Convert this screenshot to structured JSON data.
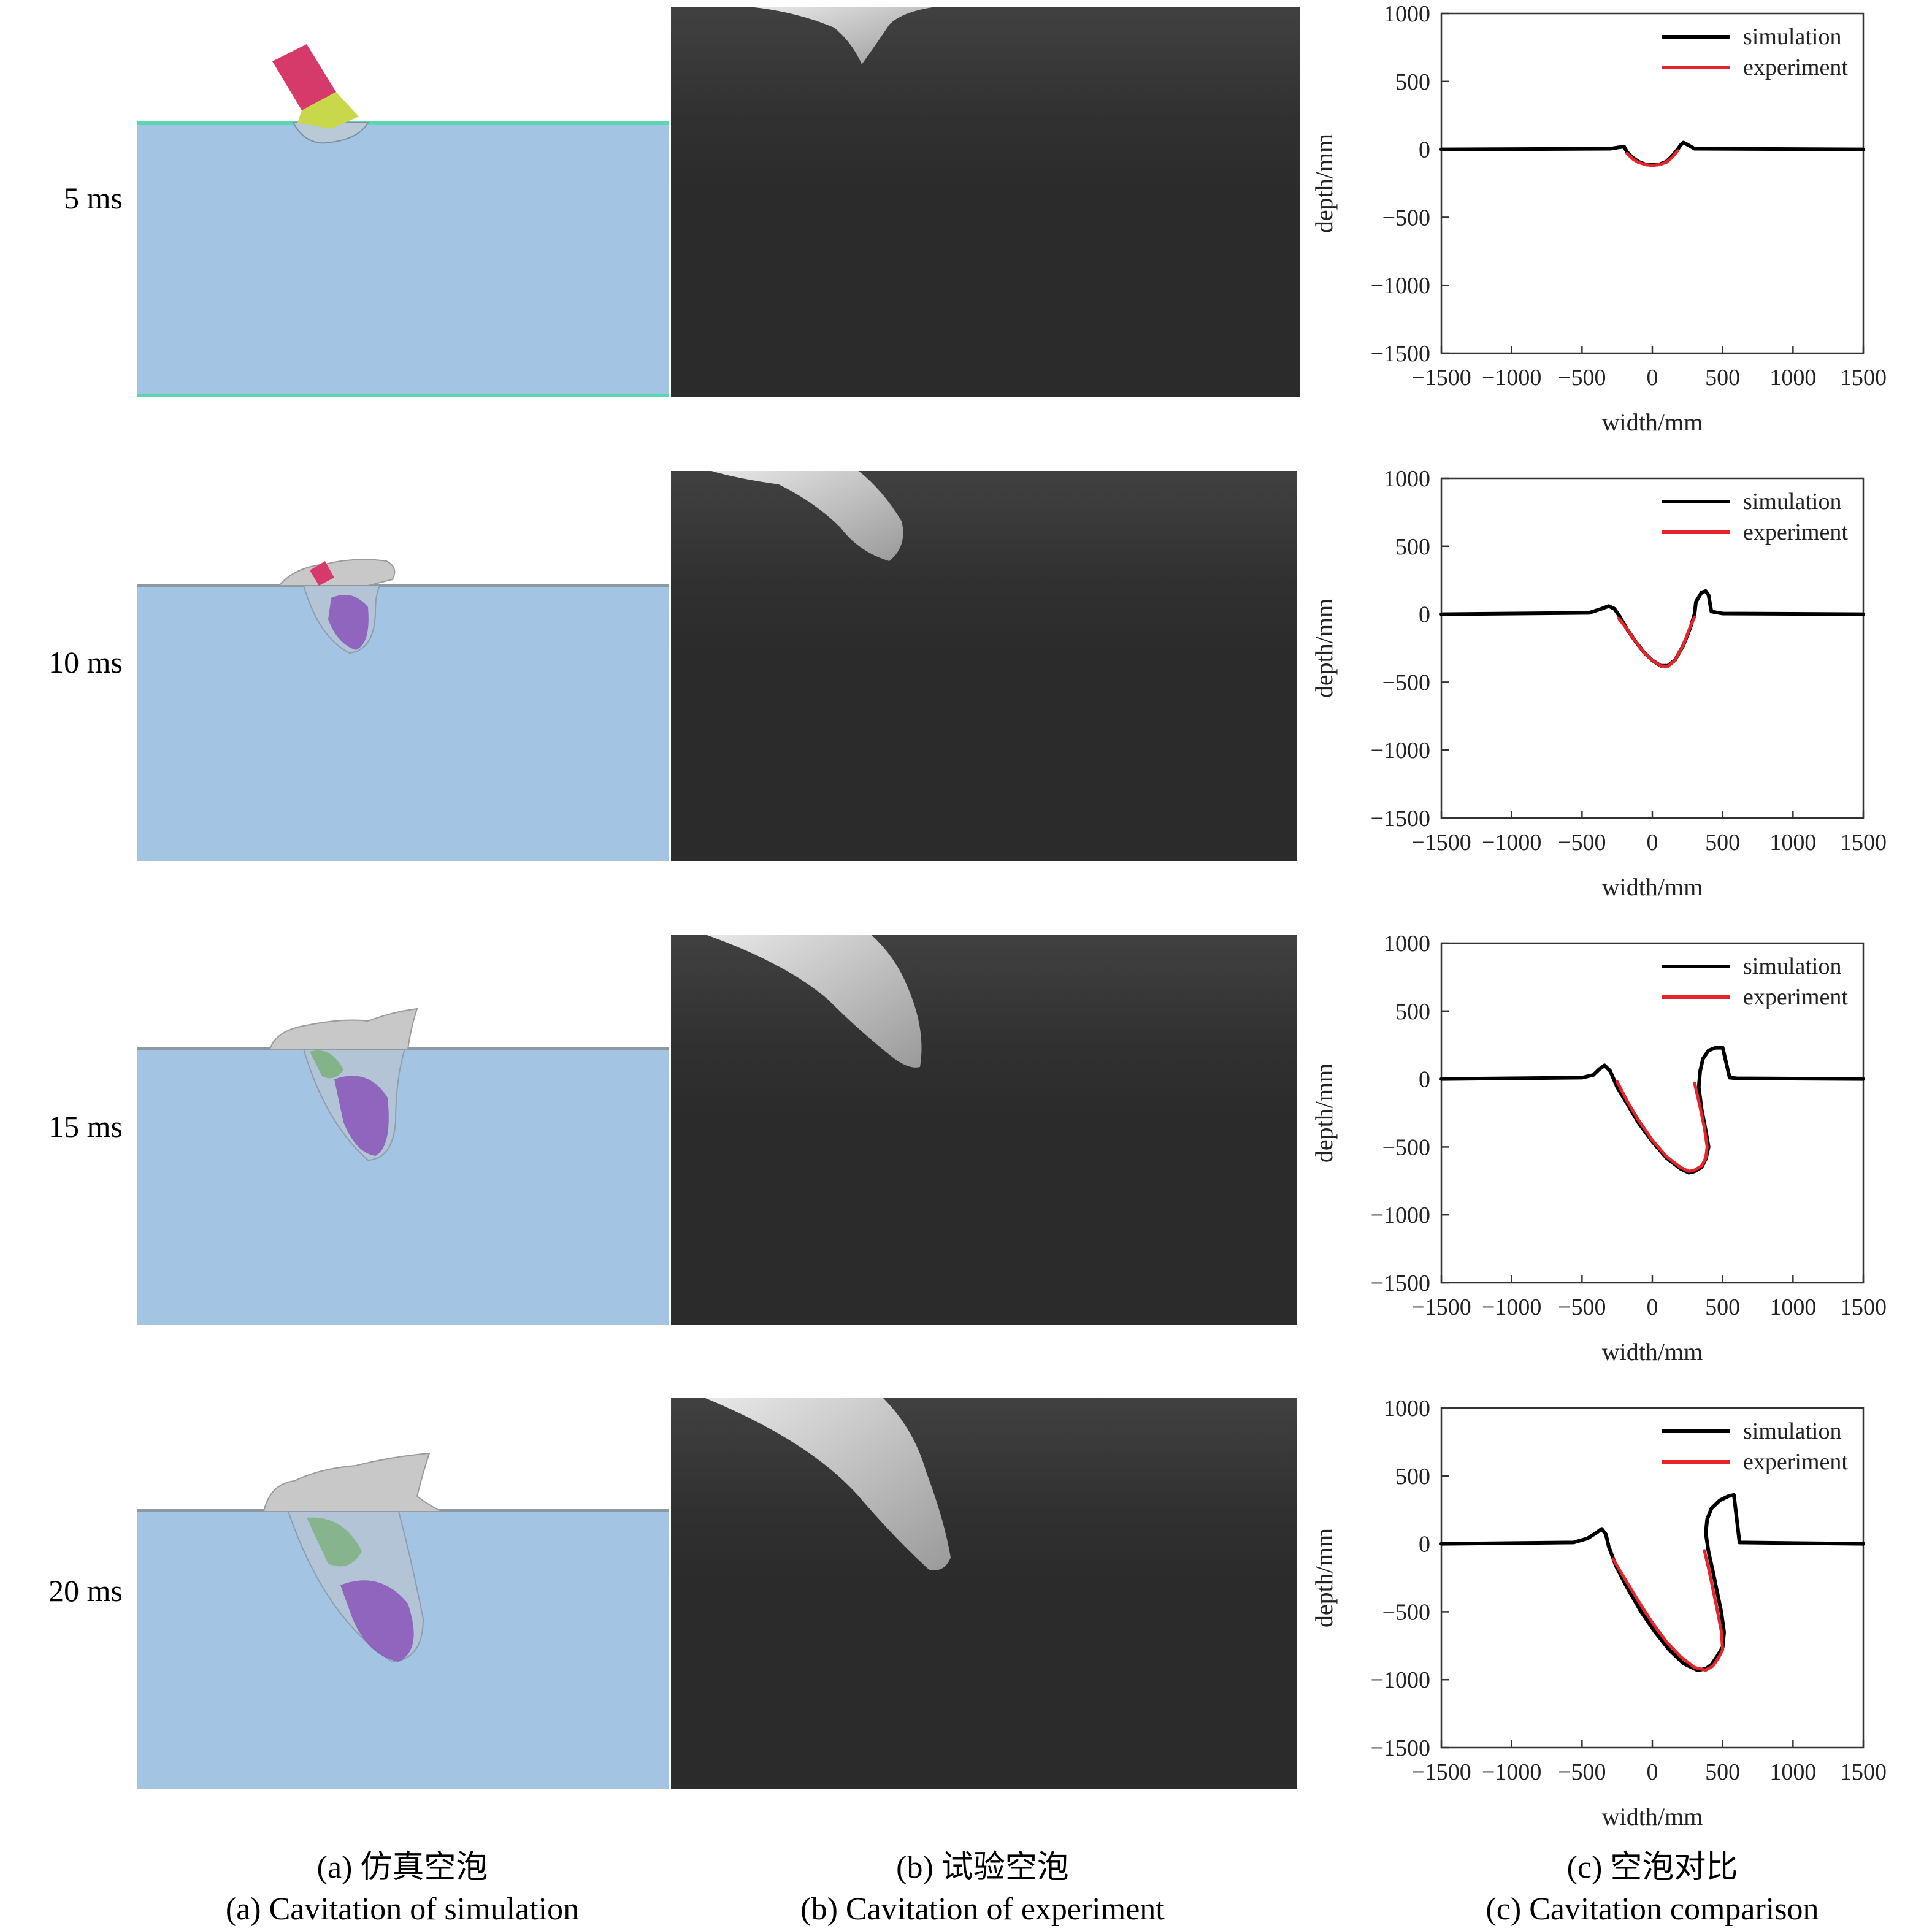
{
  "rows": [
    {
      "time_label": "5 ms"
    },
    {
      "time_label": "10 ms"
    },
    {
      "time_label": "15 ms"
    },
    {
      "time_label": "20 ms"
    }
  ],
  "colors": {
    "water": "#a3c4e2",
    "water_surface": "#5ad6b2",
    "experiment_bg": "#2b2b2b",
    "simulation_line": "#000000",
    "experiment_line": "#e8232a",
    "projectile_red": "#d63a6a",
    "projectile_yellow": "#c8d84a",
    "projectile_purple": "#8a55b8",
    "cavity_grey": "#c8c8c8"
  },
  "captions": {
    "a_cn": "(a) 仿真空泡",
    "a_en": "(a) Cavitation of simulation",
    "b_cn": "(b) 试验空泡",
    "b_en": "(b) Cavitation of experiment",
    "c_cn": "(c) 空泡对比",
    "c_en": "(c) Cavitation comparison"
  },
  "chart_data": [
    {
      "type": "line",
      "xlabel": "width/mm",
      "ylabel": "depth/mm",
      "xlim": [
        -1500,
        1500
      ],
      "ylim": [
        -1500,
        1000
      ],
      "xticks": [
        "−1500",
        "−1000",
        "−500",
        "0",
        "500",
        "1000",
        "1500"
      ],
      "yticks": [
        "1000",
        "500",
        "0",
        "−500",
        "−1000",
        "−1500"
      ],
      "legend": "top-right",
      "series": [
        {
          "name": "simulation",
          "color": "#000000",
          "x": [
            -1500,
            -300,
            -240,
            -200,
            -180,
            -140,
            -100,
            -50,
            0,
            50,
            100,
            140,
            180,
            200,
            220,
            250,
            300,
            1500
          ],
          "y": [
            0,
            5,
            15,
            20,
            -20,
            -60,
            -90,
            -110,
            -115,
            -110,
            -90,
            -50,
            0,
            30,
            50,
            35,
            5,
            0
          ]
        },
        {
          "name": "experiment",
          "color": "#e8232a",
          "x": [
            -180,
            -140,
            -100,
            -50,
            0,
            50,
            100,
            140,
            180
          ],
          "y": [
            -30,
            -70,
            -95,
            -112,
            -118,
            -112,
            -95,
            -60,
            -10
          ]
        }
      ]
    },
    {
      "type": "line",
      "xlabel": "width/mm",
      "ylabel": "depth/mm",
      "xlim": [
        -1500,
        1500
      ],
      "ylim": [
        -1500,
        1000
      ],
      "xticks": [
        "−1500",
        "−1000",
        "−500",
        "0",
        "500",
        "1000",
        "1500"
      ],
      "yticks": [
        "1000",
        "500",
        "0",
        "−500",
        "−1000",
        "−1500"
      ],
      "legend": "top-right",
      "series": [
        {
          "name": "simulation",
          "color": "#000000",
          "x": [
            -1500,
            -450,
            -360,
            -310,
            -270,
            -230,
            -180,
            -120,
            -60,
            0,
            60,
            110,
            160,
            220,
            270,
            300,
            310,
            350,
            380,
            400,
            420,
            500,
            1500
          ],
          "y": [
            0,
            10,
            40,
            60,
            40,
            -20,
            -110,
            -200,
            -280,
            -340,
            -380,
            -380,
            -340,
            -230,
            -100,
            0,
            90,
            160,
            170,
            140,
            20,
            5,
            0
          ]
        },
        {
          "name": "experiment",
          "color": "#e8232a",
          "x": [
            -240,
            -180,
            -120,
            -60,
            0,
            60,
            110,
            160,
            220,
            270,
            300
          ],
          "y": [
            -30,
            -110,
            -200,
            -280,
            -340,
            -380,
            -385,
            -340,
            -230,
            -90,
            -20
          ]
        }
      ]
    },
    {
      "type": "line",
      "xlabel": "width/mm",
      "ylabel": "depth/mm",
      "xlim": [
        -1500,
        1500
      ],
      "ylim": [
        -1500,
        1000
      ],
      "xticks": [
        "−1500",
        "−1000",
        "−500",
        "0",
        "500",
        "1000",
        "1500"
      ],
      "yticks": [
        "1000",
        "500",
        "0",
        "−500",
        "−1000",
        "−1500"
      ],
      "legend": "top-right",
      "series": [
        {
          "name": "simulation",
          "color": "#000000",
          "x": [
            -1500,
            -500,
            -420,
            -380,
            -340,
            -300,
            -250,
            -180,
            -100,
            0,
            100,
            200,
            260,
            300,
            350,
            380,
            400,
            380,
            350,
            330,
            340,
            360,
            400,
            450,
            500,
            550,
            600,
            1500
          ],
          "y": [
            0,
            10,
            30,
            70,
            100,
            60,
            -60,
            -180,
            -320,
            -460,
            -580,
            -660,
            -690,
            -680,
            -650,
            -590,
            -500,
            -380,
            -220,
            -60,
            60,
            150,
            210,
            230,
            230,
            10,
            5,
            0
          ]
        },
        {
          "name": "experiment",
          "color": "#e8232a",
          "x": [
            -250,
            -180,
            -100,
            0,
            100,
            200,
            260,
            300,
            350,
            380,
            390,
            370,
            340,
            300
          ],
          "y": [
            -20,
            -160,
            -300,
            -450,
            -570,
            -650,
            -680,
            -670,
            -640,
            -580,
            -500,
            -360,
            -210,
            -30
          ]
        }
      ]
    },
    {
      "type": "line",
      "xlabel": "width/mm",
      "ylabel": "depth/mm",
      "xlim": [
        -1500,
        1500
      ],
      "ylim": [
        -1500,
        1000
      ],
      "xticks": [
        "−1500",
        "−1000",
        "−500",
        "0",
        "500",
        "1000",
        "1500"
      ],
      "yticks": [
        "1000",
        "500",
        "0",
        "−500",
        "−1000",
        "−1500"
      ],
      "legend": "top-right",
      "series": [
        {
          "name": "simulation",
          "color": "#000000",
          "x": [
            -1500,
            -560,
            -460,
            -400,
            -360,
            -330,
            -310,
            -260,
            -180,
            -80,
            20,
            120,
            220,
            320,
            380,
            420,
            460,
            500,
            510,
            490,
            460,
            430,
            400,
            380,
            390,
            420,
            480,
            540,
            580,
            620,
            1500
          ],
          "y": [
            0,
            10,
            40,
            80,
            110,
            70,
            -20,
            -160,
            -320,
            -500,
            -650,
            -780,
            -880,
            -930,
            -920,
            -890,
            -830,
            -760,
            -650,
            -500,
            -350,
            -200,
            -60,
            80,
            180,
            260,
            320,
            350,
            360,
            10,
            0
          ]
        },
        {
          "name": "experiment",
          "color": "#e8232a",
          "x": [
            -280,
            -200,
            -100,
            0,
            100,
            200,
            300,
            380,
            430,
            470,
            500,
            490,
            460,
            430,
            400,
            370
          ],
          "y": [
            -110,
            -250,
            -420,
            -580,
            -720,
            -830,
            -910,
            -930,
            -900,
            -840,
            -780,
            -640,
            -480,
            -330,
            -180,
            -50
          ]
        }
      ]
    }
  ]
}
